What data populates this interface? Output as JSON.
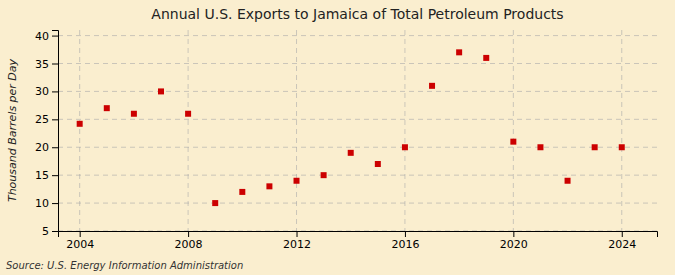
{
  "chart_data": {
    "type": "scatter",
    "title": "Annual U.S. Exports to Jamaica of Total Petroleum Products",
    "ylabel": "Thousand Barrels per Day",
    "source": "Source: U.S. Energy Information Administration",
    "x": [
      2004,
      2005,
      2006,
      2007,
      2008,
      2009,
      2010,
      2011,
      2012,
      2013,
      2014,
      2015,
      2016,
      2017,
      2018,
      2019,
      2020,
      2021,
      2022,
      2023,
      2024
    ],
    "values": [
      24.2,
      27.0,
      26.0,
      30.0,
      26.0,
      10.0,
      12.0,
      13.0,
      14.0,
      15.0,
      19.0,
      17.0,
      20.0,
      31.0,
      37.0,
      36.0,
      21.0,
      20.0,
      14.0,
      20.0,
      20.0
    ],
    "color": "#cc0000",
    "marker": "square",
    "xlim": [
      2003.2,
      2025.3
    ],
    "ylim": [
      5,
      41
    ],
    "xticks": [
      2004,
      2008,
      2012,
      2016,
      2020,
      2024
    ],
    "yticks": [
      5,
      10,
      15,
      20,
      25,
      30,
      35,
      40
    ],
    "grid": true
  }
}
